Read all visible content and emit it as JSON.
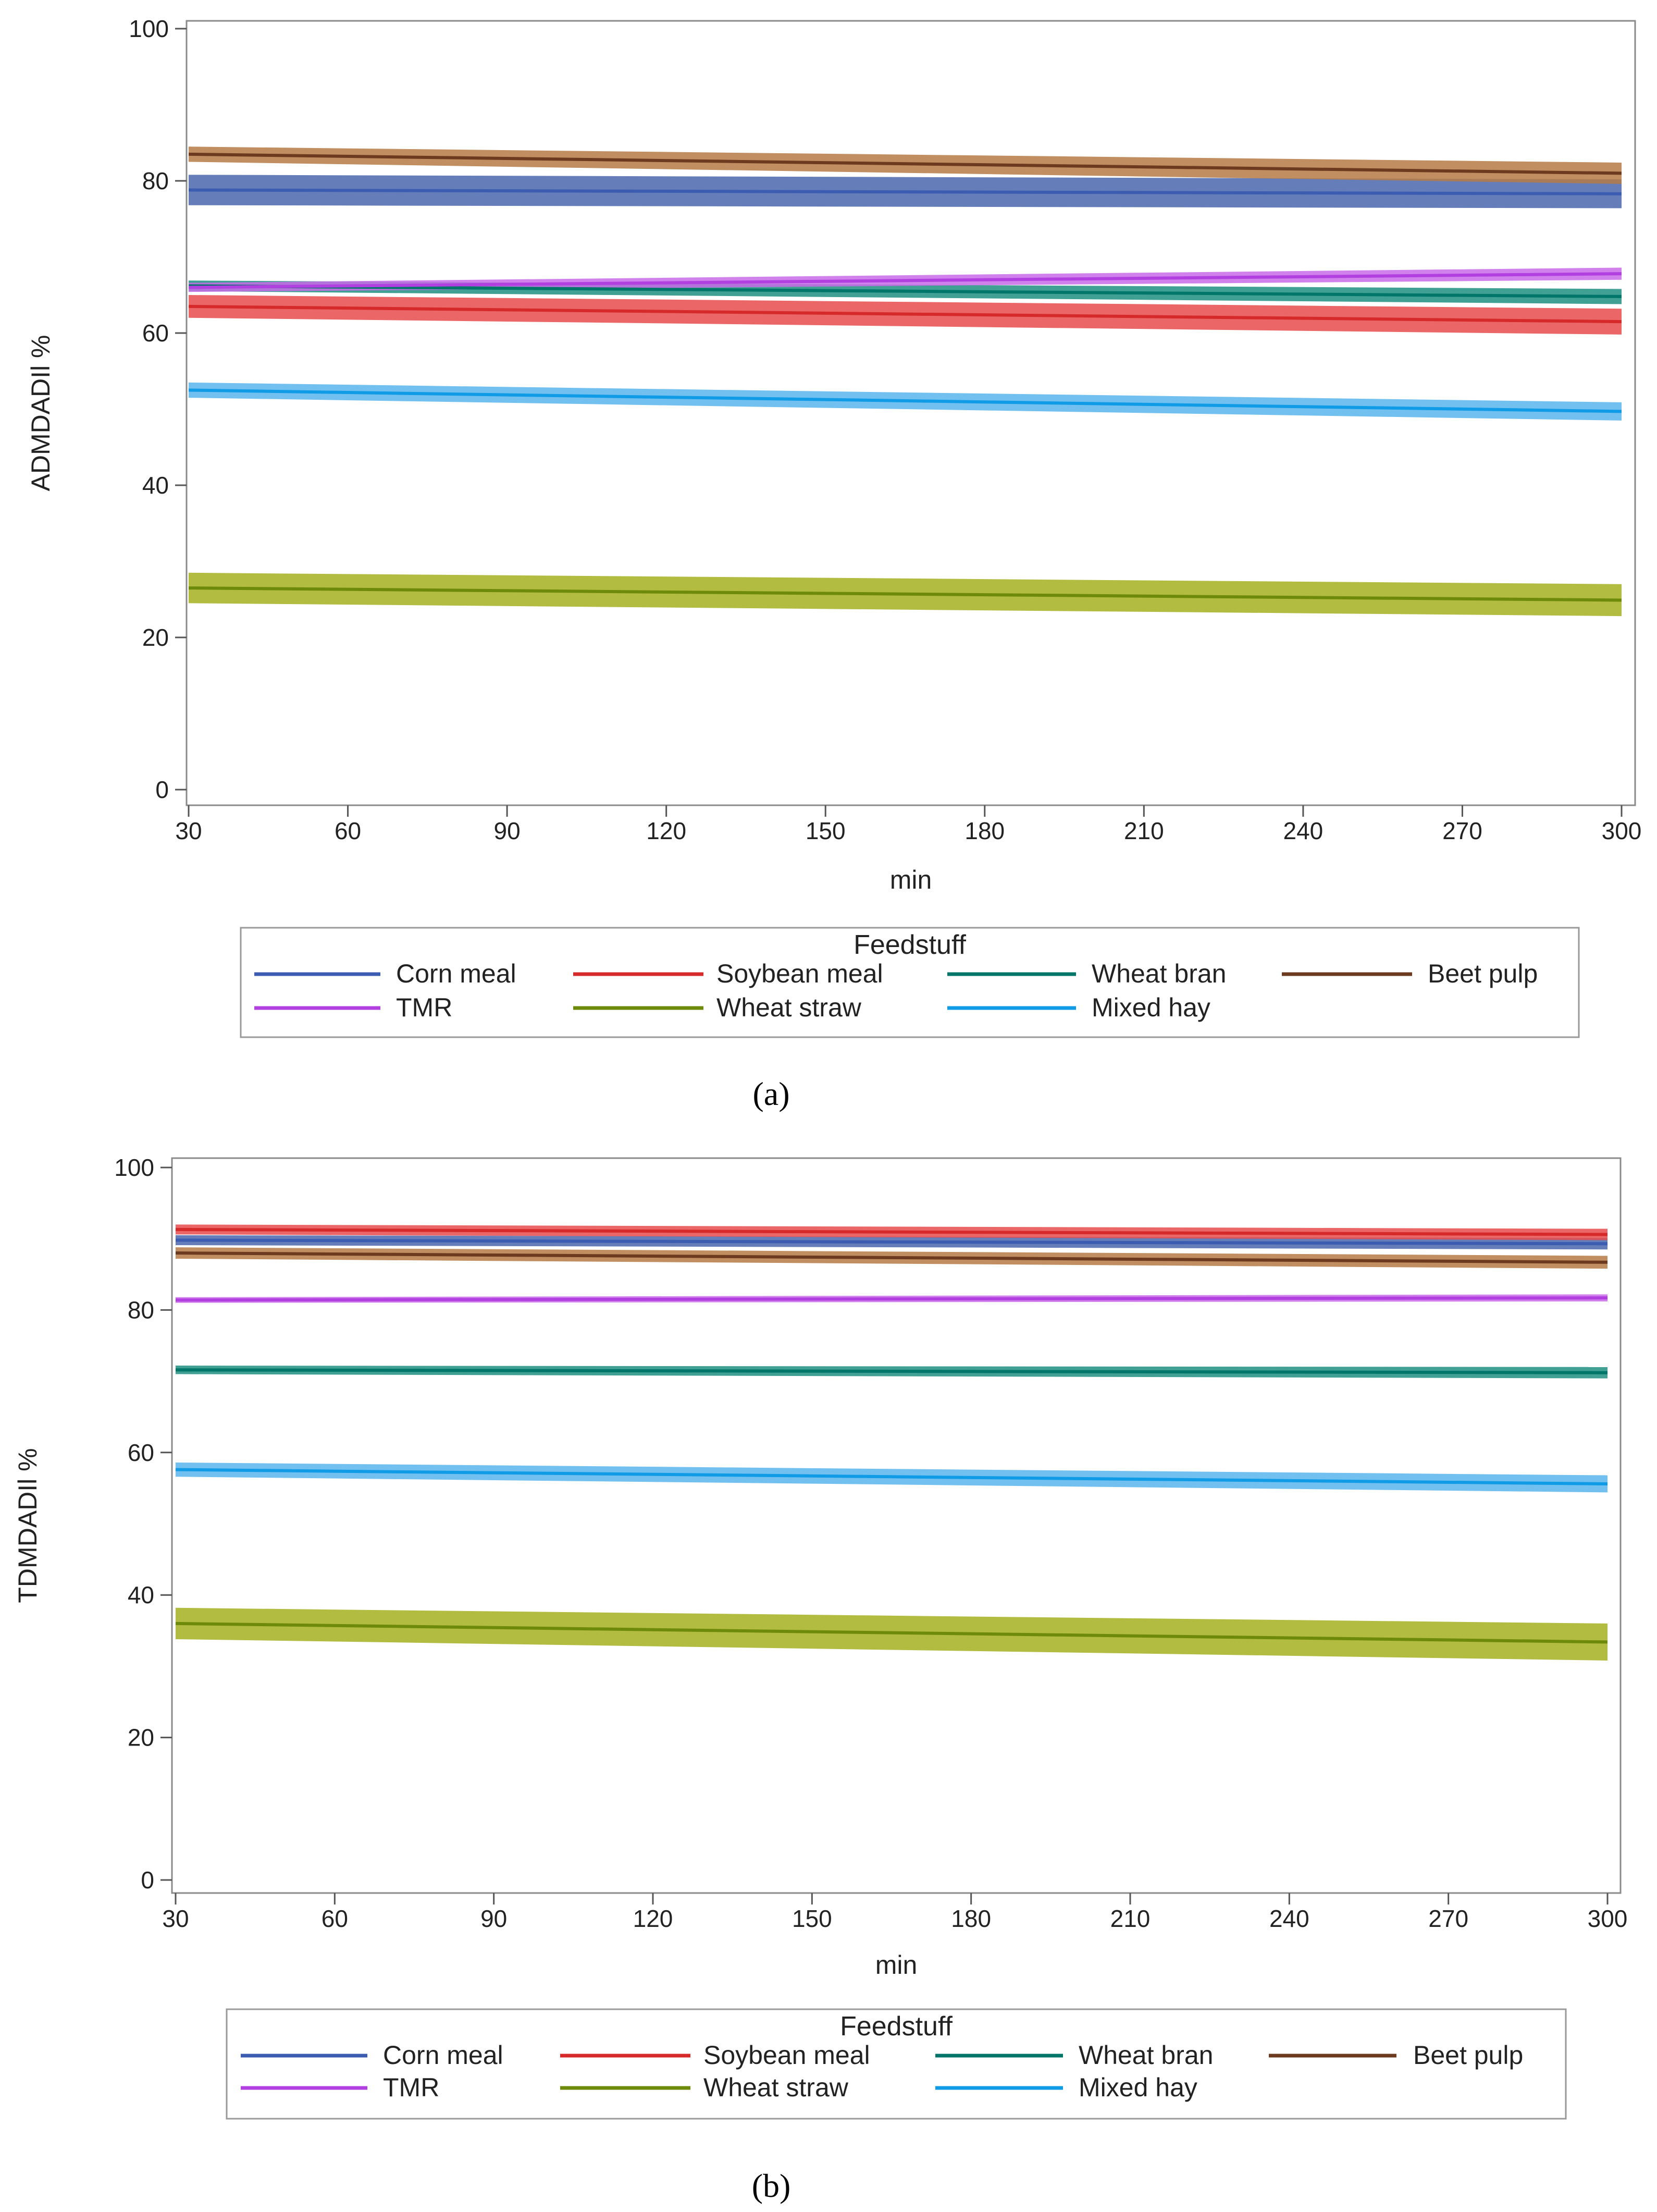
{
  "chart_data": [
    {
      "type": "line",
      "panel_label": "a",
      "panel_caption": "(a)",
      "title": "",
      "xlabel": "min",
      "ylabel": "ADMDADIl %",
      "xlim": [
        30,
        300
      ],
      "ylim": [
        0,
        100
      ],
      "xticks": [
        30,
        60,
        90,
        120,
        150,
        180,
        210,
        240,
        270,
        300
      ],
      "yticks": [
        0,
        20,
        40,
        60,
        80,
        100
      ],
      "legend_title": "Feedstuff",
      "legend_position": "bottom",
      "x": [
        30,
        300
      ],
      "series": [
        {
          "name": "Corn meal",
          "color": "#3b5cb0",
          "band": "#4a66ad",
          "values": [
            78.8,
            78.3
          ],
          "lower": [
            76.8,
            76.4
          ],
          "upper": [
            80.8,
            80.2
          ]
        },
        {
          "name": "Soybean meal",
          "color": "#d62a2a",
          "band": "#e84c4c",
          "values": [
            63.5,
            61.5
          ],
          "lower": [
            62.0,
            59.8
          ],
          "upper": [
            65.0,
            63.2
          ]
        },
        {
          "name": "Wheat bran",
          "color": "#00766a",
          "band": "#1f8f80",
          "values": [
            66.2,
            64.8
          ],
          "lower": [
            65.5,
            63.8
          ],
          "upper": [
            66.9,
            65.8
          ]
        },
        {
          "name": "Beet pulp",
          "color": "#6b3a1f",
          "band": "#b57a44",
          "values": [
            83.5,
            81.0
          ],
          "lower": [
            82.5,
            79.6
          ],
          "upper": [
            84.5,
            82.4
          ]
        },
        {
          "name": "TMR",
          "color": "#b23fe0",
          "band": "#c86be8",
          "values": [
            66.0,
            67.8
          ],
          "lower": [
            65.4,
            67.0
          ],
          "upper": [
            66.6,
            68.6
          ]
        },
        {
          "name": "Wheat straw",
          "color": "#6e8a0a",
          "band": "#a3b020",
          "values": [
            26.5,
            24.9
          ],
          "lower": [
            24.5,
            22.8
          ],
          "upper": [
            28.5,
            27.0
          ]
        },
        {
          "name": "Mixed hay",
          "color": "#0f9be6",
          "band": "#59b5ec",
          "values": [
            52.5,
            49.7
          ],
          "lower": [
            51.5,
            48.5
          ],
          "upper": [
            53.5,
            50.9
          ]
        }
      ]
    },
    {
      "type": "line",
      "panel_label": "b",
      "panel_caption": "(b)",
      "title": "",
      "xlabel": "min",
      "ylabel": "TDMDADIl %",
      "xlim": [
        30,
        300
      ],
      "ylim": [
        0,
        100
      ],
      "xticks": [
        30,
        60,
        90,
        120,
        150,
        180,
        210,
        240,
        270,
        300
      ],
      "yticks": [
        0,
        20,
        40,
        60,
        80,
        100
      ],
      "legend_title": "Feedstuff",
      "legend_position": "bottom",
      "x": [
        30,
        300
      ],
      "series": [
        {
          "name": "Corn meal",
          "color": "#3b5cb0",
          "band": "#4a66ad",
          "values": [
            89.8,
            89.3
          ],
          "lower": [
            89.1,
            88.5
          ],
          "upper": [
            90.5,
            90.1
          ]
        },
        {
          "name": "Soybean meal",
          "color": "#d62a2a",
          "band": "#e84c4c",
          "values": [
            91.3,
            90.6
          ],
          "lower": [
            90.6,
            89.8
          ],
          "upper": [
            92.0,
            91.4
          ]
        },
        {
          "name": "Wheat bran",
          "color": "#00766a",
          "band": "#1f8f80",
          "values": [
            71.6,
            71.2
          ],
          "lower": [
            71.0,
            70.4
          ],
          "upper": [
            72.2,
            72.0
          ]
        },
        {
          "name": "Beet pulp",
          "color": "#6b3a1f",
          "band": "#b57a44",
          "values": [
            88.0,
            86.7
          ],
          "lower": [
            87.2,
            85.8
          ],
          "upper": [
            88.8,
            87.6
          ]
        },
        {
          "name": "TMR",
          "color": "#b23fe0",
          "band": "#c86be8",
          "values": [
            81.4,
            81.7
          ],
          "lower": [
            81.0,
            81.2
          ],
          "upper": [
            81.8,
            82.2
          ]
        },
        {
          "name": "Wheat straw",
          "color": "#6e8a0a",
          "band": "#a3b020",
          "values": [
            36.0,
            33.4
          ],
          "lower": [
            33.8,
            30.8
          ],
          "upper": [
            38.2,
            36.0
          ]
        },
        {
          "name": "Mixed hay",
          "color": "#0f9be6",
          "band": "#59b5ec",
          "values": [
            57.6,
            55.6
          ],
          "lower": [
            56.6,
            54.4
          ],
          "upper": [
            58.6,
            56.8
          ]
        }
      ]
    }
  ]
}
